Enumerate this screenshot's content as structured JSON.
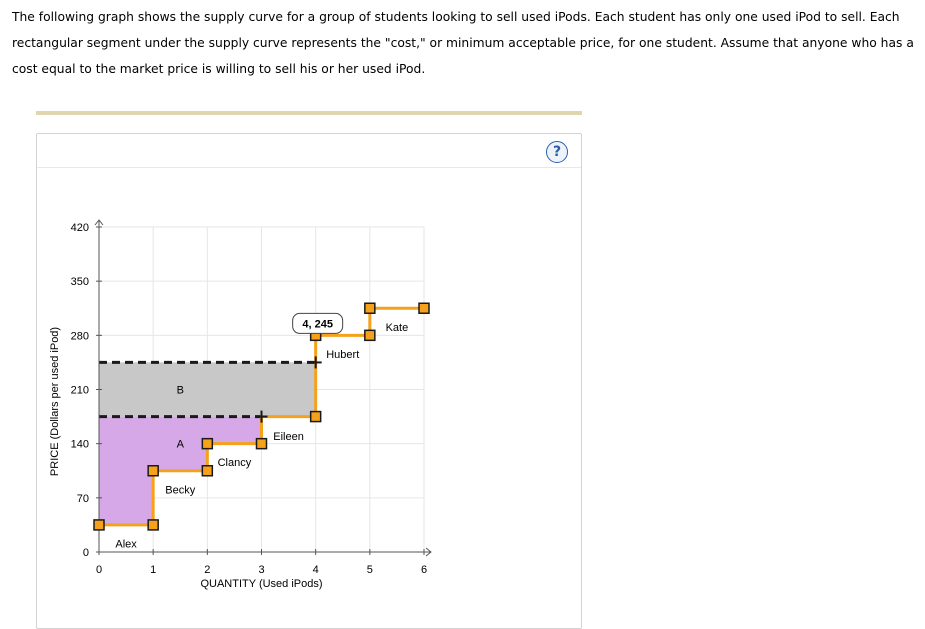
{
  "intro": {
    "text": "The following graph shows the supply curve for a group of students looking to sell used iPods. Each student has only one used iPod to sell. Each rectangular segment under the supply curve represents the \"cost,\" or minimum acceptable price, for one student. Assume that anyone who has a cost equal to the market price is willing to sell his or her used iPod."
  },
  "help": {
    "symbol": "?"
  },
  "chart_data": {
    "type": "line",
    "xlabel": "QUANTITY (Used iPods)",
    "ylabel": "PRICE (Dollars per used iPod)",
    "xlim": [
      0,
      6
    ],
    "ylim": [
      0,
      420
    ],
    "xticks": [
      0,
      1,
      2,
      3,
      4,
      5,
      6
    ],
    "yticks": [
      0,
      70,
      140,
      210,
      280,
      350,
      420
    ],
    "grid": true,
    "supply_curve": [
      [
        0,
        35
      ],
      [
        1,
        35
      ],
      [
        1,
        105
      ],
      [
        2,
        105
      ],
      [
        2,
        140
      ],
      [
        3,
        140
      ],
      [
        3,
        175
      ],
      [
        4,
        175
      ],
      [
        4,
        280
      ],
      [
        5,
        280
      ],
      [
        5,
        315
      ],
      [
        6,
        315
      ]
    ],
    "handles": [
      [
        0,
        35
      ],
      [
        1,
        35
      ],
      [
        1,
        105
      ],
      [
        2,
        105
      ],
      [
        2,
        140
      ],
      [
        3,
        140
      ],
      [
        4,
        175
      ],
      [
        4,
        280
      ],
      [
        5,
        280
      ],
      [
        5,
        315
      ],
      [
        6,
        315
      ]
    ],
    "students": [
      {
        "name": "Alex",
        "x": 0.5,
        "y": 11
      },
      {
        "name": "Becky",
        "x": 1.5,
        "y": 81
      },
      {
        "name": "Clancy",
        "x": 2.5,
        "y": 116
      },
      {
        "name": "Eileen",
        "x": 3.5,
        "y": 150
      },
      {
        "name": "Hubert",
        "x": 4.5,
        "y": 256
      },
      {
        "name": "Kate",
        "x": 5.5,
        "y": 291
      }
    ],
    "price_lines": [
      175,
      245
    ],
    "crosshairs": [
      [
        3,
        175
      ],
      [
        4,
        245
      ]
    ],
    "area_A": {
      "label": "A",
      "x": 1.5,
      "y": 140,
      "polygon": [
        [
          0,
          175
        ],
        [
          3,
          175
        ],
        [
          3,
          140
        ],
        [
          2,
          140
        ],
        [
          2,
          105
        ],
        [
          1,
          105
        ],
        [
          1,
          35
        ],
        [
          0,
          35
        ]
      ],
      "color": "#d6a8e8"
    },
    "area_B": {
      "label": "B",
      "x": 1.5,
      "y": 210,
      "polygon": [
        [
          0,
          245
        ],
        [
          4,
          245
        ],
        [
          4,
          175
        ],
        [
          0,
          175
        ]
      ],
      "color": "#c8c8c8"
    },
    "callout": {
      "text": "4, 245",
      "x": 4,
      "y": 245
    },
    "colors": {
      "curve": "#f5a11b",
      "handle_fill": "#f5a11b",
      "handle_stroke": "#1a1a1a",
      "axis": "#555555",
      "grid": "#e6e6e6"
    }
  }
}
